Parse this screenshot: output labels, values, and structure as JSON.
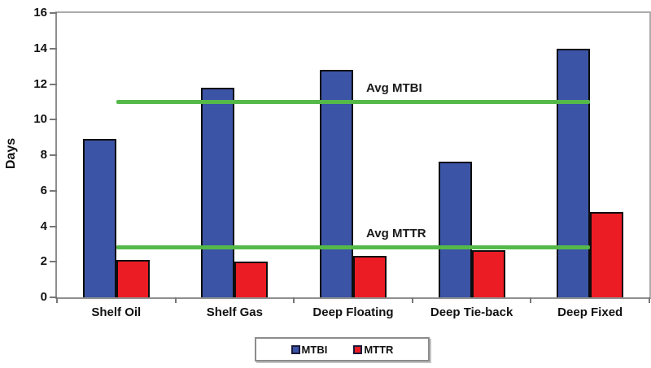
{
  "chart_data": {
    "type": "bar",
    "title": "",
    "xlabel": "",
    "ylabel": "Days",
    "ylim": [
      0,
      16
    ],
    "ytick_step": 2,
    "grid": false,
    "legend_position": "bottom",
    "categories": [
      "Shelf Oil",
      "Shelf Gas",
      "Deep Floating",
      "Deep Tie-back",
      "Deep Fixed"
    ],
    "series": [
      {
        "name": "MTBI",
        "color": "#3b54a5",
        "values": [
          8.9,
          11.8,
          12.8,
          7.65,
          14.0
        ]
      },
      {
        "name": "MTTR",
        "color": "#ec1c24",
        "values": [
          2.1,
          2.0,
          2.35,
          2.65,
          4.8
        ]
      }
    ],
    "reference_lines": [
      {
        "label": "Avg MTBI",
        "value": 11.0,
        "color": "#55b94a"
      },
      {
        "label": "Avg MTTR",
        "value": 2.8,
        "color": "#55b94a"
      }
    ]
  },
  "legend": {
    "items": [
      {
        "label": "MTBI",
        "color": "#3b54a5"
      },
      {
        "label": "MTTR",
        "color": "#ec1c24"
      }
    ]
  }
}
